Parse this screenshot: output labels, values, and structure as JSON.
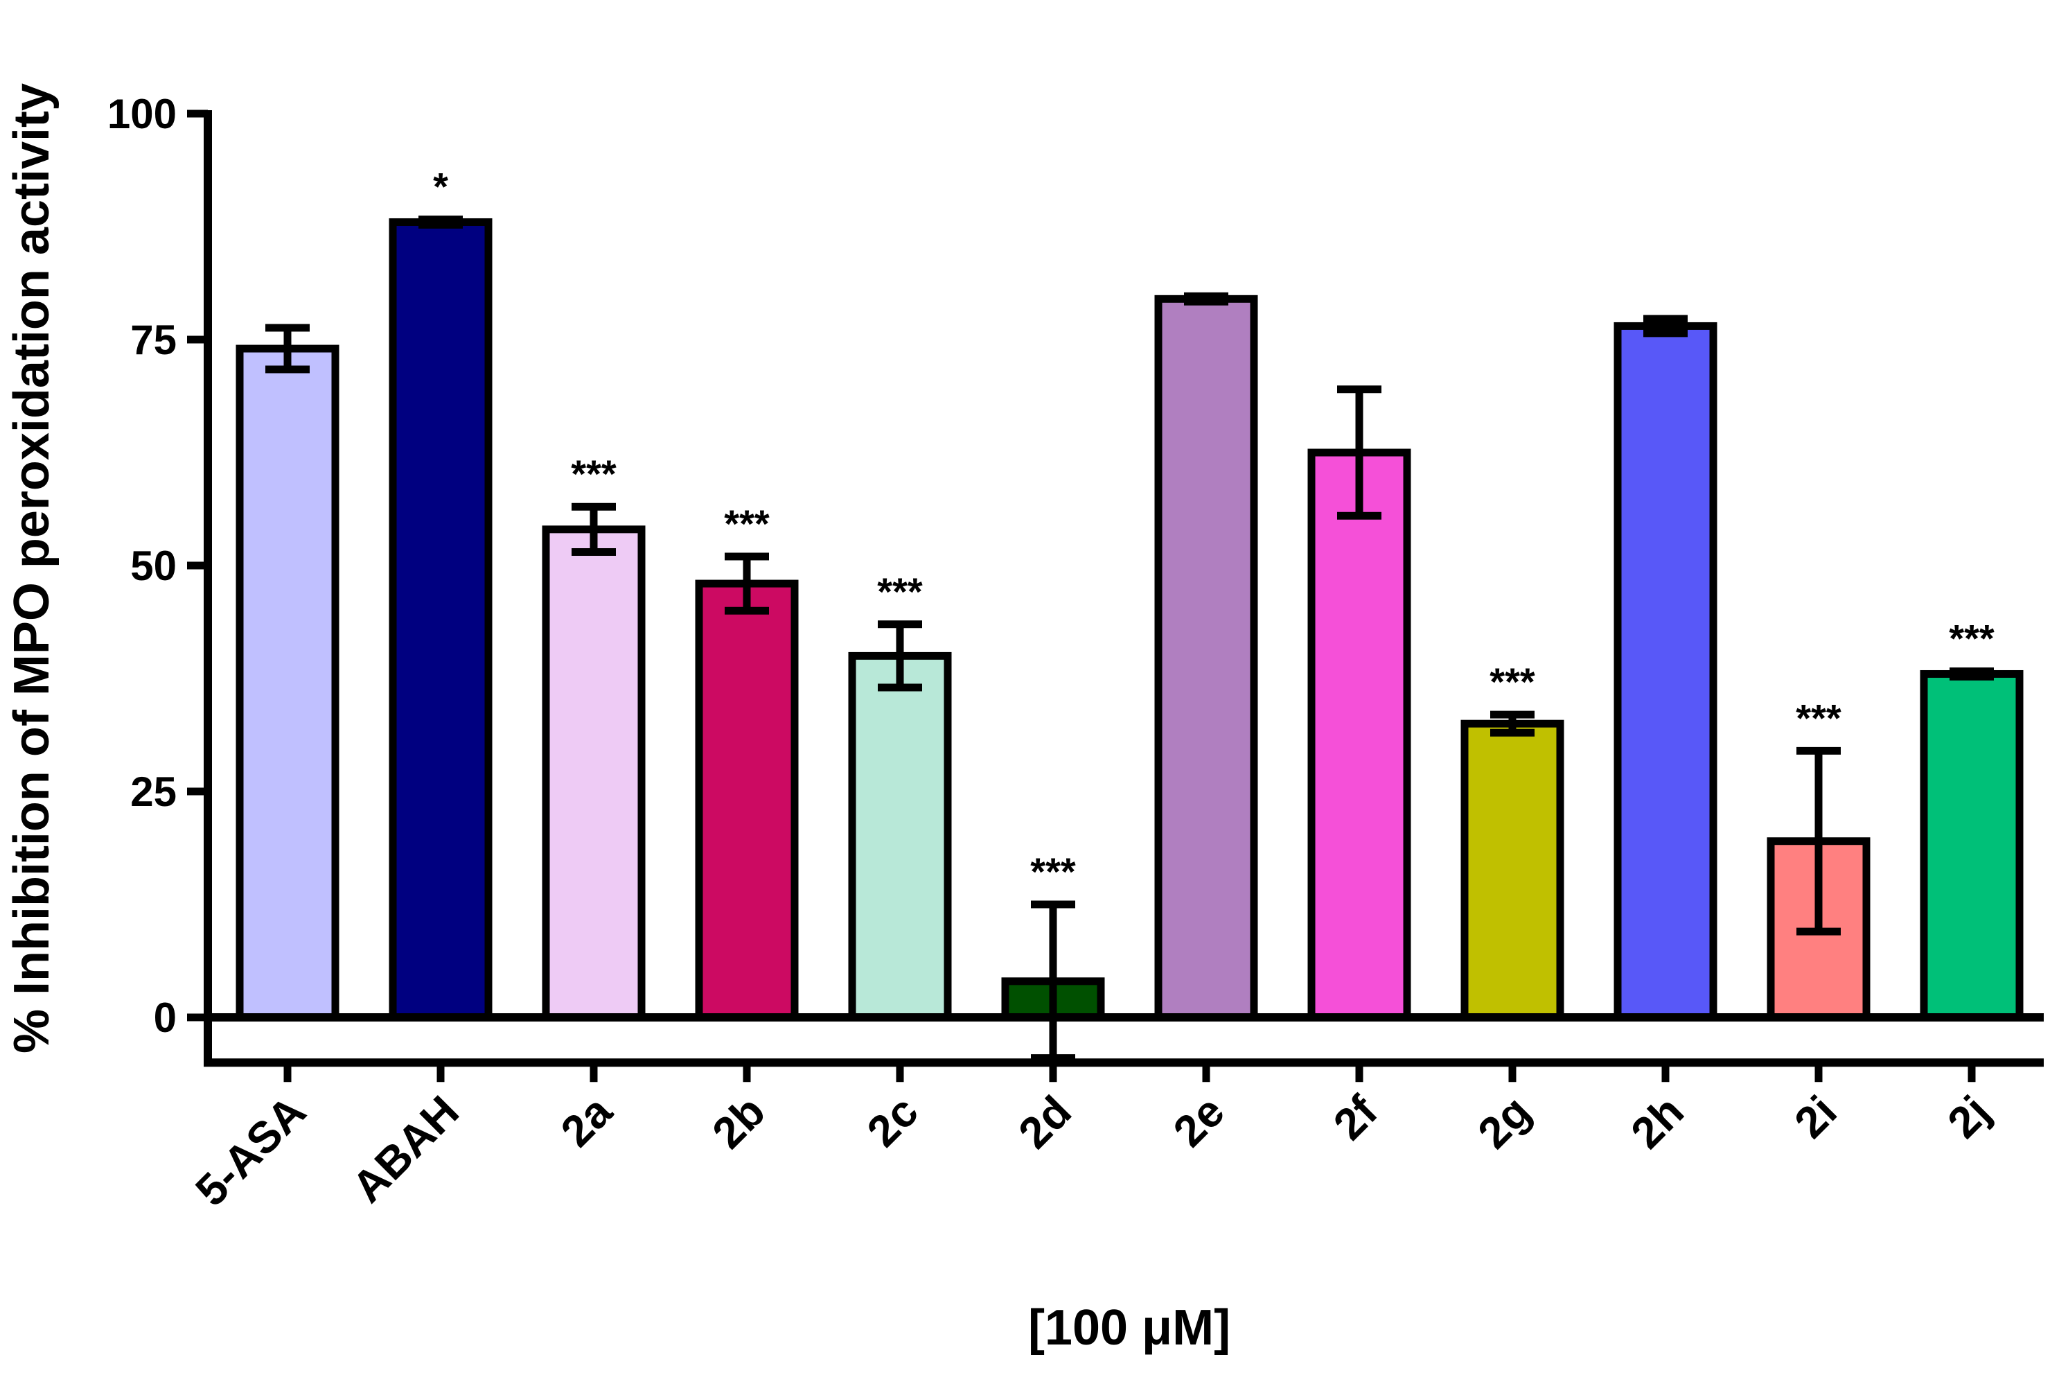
{
  "chart_data": {
    "type": "bar",
    "title": "",
    "xlabel": "[100 μM]",
    "ylabel": "% Inhibition of MPO peroxidation activity",
    "ylim": [
      -5,
      100
    ],
    "yticks": [
      0,
      25,
      50,
      75,
      100
    ],
    "ytick_labels": [
      "0",
      "25",
      "50",
      "75",
      "100"
    ],
    "grid": false,
    "categories": [
      "5-ASA",
      "ABAH",
      "2a",
      "2b",
      "2c",
      "2d",
      "2e",
      "2f",
      "2g",
      "2h",
      "2i",
      "2j"
    ],
    "values": [
      74,
      88,
      54,
      48,
      40,
      4,
      79.5,
      62.5,
      32.5,
      76.5,
      19.5,
      38
    ],
    "errors": [
      2.3,
      0.3,
      2.5,
      3,
      3.5,
      8.5,
      0.3,
      7,
      1,
      0.8,
      10,
      0.3
    ],
    "colors": [
      "#c0c0ff",
      "#000080",
      "#eecbf5",
      "#cc0a62",
      "#b8e8d8",
      "#005000",
      "#b07fc0",
      "#f550d8",
      "#c0c000",
      "#5858f8",
      "#ff8080",
      "#00c078"
    ],
    "significance": [
      "",
      "*",
      "***",
      "***",
      "***",
      "***",
      "",
      "",
      "***",
      "",
      "***",
      "***"
    ]
  }
}
